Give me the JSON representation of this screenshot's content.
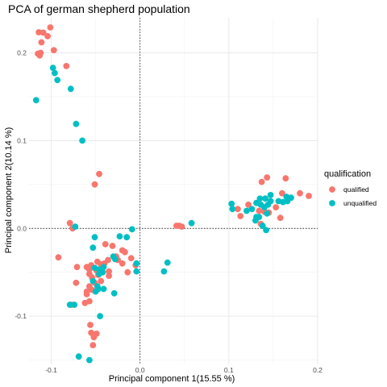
{
  "chart_data": {
    "type": "scatter",
    "title": "PCA of german shepherd population",
    "xlabel": "Principal component 1(15.55 %)",
    "ylabel": "Principal component 2(10.14 %)",
    "xlim": [
      -0.125,
      0.2
    ],
    "ylim": [
      -0.155,
      0.24
    ],
    "x_ticks": [
      -0.1,
      0.0,
      0.1,
      0.2
    ],
    "x_tick_labels": [
      "-0.1",
      "0.0",
      "0.1",
      "0.2"
    ],
    "y_ticks": [
      -0.1,
      0.0,
      0.1,
      0.2
    ],
    "y_tick_labels": [
      "-0.1",
      "0.0",
      "0.1",
      "0.2"
    ],
    "grid": true,
    "reference_lines": {
      "x": 0,
      "y": 0,
      "style": "dotted"
    },
    "legend": {
      "title": "qualification",
      "placement": "right"
    },
    "series": [
      {
        "name": "qualified",
        "color": "#F8766D",
        "points": [
          [
            -0.101,
            0.229
          ],
          [
            -0.114,
            0.2235
          ],
          [
            -0.109,
            0.223
          ],
          [
            -0.104,
            0.219
          ],
          [
            -0.111,
            0.212
          ],
          [
            -0.112,
            0.2
          ],
          [
            -0.115,
            0.199
          ],
          [
            -0.113,
            0.197
          ],
          [
            -0.097,
            0.203
          ],
          [
            -0.083,
            0.185
          ],
          [
            -0.046,
            0.062
          ],
          [
            -0.051,
            0.05
          ],
          [
            -0.079,
            0.006
          ],
          [
            -0.076,
            0.0
          ],
          [
            -0.092,
            -0.033
          ],
          [
            -0.039,
            -0.018
          ],
          [
            -0.031,
            -0.02
          ],
          [
            -0.02,
            -0.025
          ],
          [
            -0.017,
            -0.027
          ],
          [
            -0.027,
            -0.032
          ],
          [
            -0.036,
            -0.036
          ],
          [
            -0.04,
            -0.04
          ],
          [
            -0.048,
            -0.038
          ],
          [
            -0.044,
            -0.041
          ],
          [
            -0.055,
            -0.042
          ],
          [
            -0.06,
            -0.044
          ],
          [
            -0.057,
            -0.047
          ],
          [
            -0.049,
            -0.048
          ],
          [
            -0.047,
            -0.053
          ],
          [
            -0.057,
            -0.052
          ],
          [
            -0.054,
            -0.056
          ],
          [
            -0.035,
            -0.054
          ],
          [
            -0.035,
            -0.049
          ],
          [
            -0.025,
            -0.036
          ],
          [
            -0.02,
            -0.04
          ],
          [
            -0.01,
            -0.034
          ],
          [
            -0.005,
            -0.042
          ],
          [
            -0.014,
            -0.05
          ],
          [
            -0.044,
            -0.06
          ],
          [
            -0.051,
            -0.062
          ],
          [
            -0.057,
            -0.066
          ],
          [
            -0.054,
            -0.07
          ],
          [
            -0.06,
            -0.072
          ],
          [
            -0.06,
            -0.075
          ],
          [
            -0.057,
            -0.083
          ],
          [
            -0.071,
            -0.044
          ],
          [
            -0.072,
            -0.062
          ],
          [
            -0.062,
            -0.085
          ],
          [
            -0.077,
            -0.087
          ],
          [
            -0.056,
            -0.11
          ],
          [
            -0.049,
            -0.12
          ],
          [
            -0.055,
            -0.119
          ],
          [
            -0.052,
            -0.124
          ],
          [
            -0.053,
            -0.133
          ],
          [
            0.041,
            0.003
          ],
          [
            0.044,
            0.003
          ],
          [
            0.047,
            0.002
          ],
          [
            0.137,
            0.053
          ],
          [
            0.143,
            0.058
          ],
          [
            0.164,
            0.057
          ],
          [
            0.18,
            0.04
          ],
          [
            0.19,
            0.037
          ],
          [
            0.16,
            0.04
          ],
          [
            0.153,
            0.024
          ],
          [
            0.158,
            0.012
          ],
          [
            0.122,
            0.027
          ],
          [
            0.134,
            0.02
          ],
          [
            0.14,
            0.019
          ],
          [
            0.145,
            0.018
          ],
          [
            0.136,
            0.005
          ],
          [
            0.11,
            0.022
          ],
          [
            0.113,
            0.014
          ]
        ]
      },
      {
        "name": "unqualified",
        "color": "#00BFC4",
        "points": [
          [
            -0.098,
            0.183
          ],
          [
            -0.096,
            0.177
          ],
          [
            -0.093,
            0.169
          ],
          [
            -0.117,
            0.146
          ],
          [
            -0.078,
            0.159
          ],
          [
            -0.072,
            0.119
          ],
          [
            -0.065,
            0.1
          ],
          [
            -0.073,
            0.002
          ],
          [
            -0.009,
            -0.001
          ],
          [
            -0.023,
            -0.009
          ],
          [
            -0.015,
            -0.01
          ],
          [
            -0.051,
            -0.01
          ],
          [
            -0.053,
            -0.022
          ],
          [
            -0.043,
            -0.049
          ],
          [
            -0.046,
            -0.052
          ],
          [
            -0.046,
            -0.047
          ],
          [
            -0.042,
            -0.05
          ],
          [
            -0.041,
            -0.044
          ],
          [
            -0.051,
            -0.045
          ],
          [
            -0.053,
            -0.06
          ],
          [
            -0.048,
            -0.066
          ],
          [
            -0.047,
            -0.069
          ],
          [
            -0.05,
            -0.072
          ],
          [
            -0.03,
            -0.032
          ],
          [
            -0.028,
            -0.035
          ],
          [
            -0.041,
            -0.069
          ],
          [
            -0.029,
            -0.074
          ],
          [
            -0.004,
            -0.04
          ],
          [
            -0.004,
            -0.049
          ],
          [
            -0.074,
            -0.087
          ],
          [
            -0.079,
            -0.087
          ],
          [
            -0.045,
            -0.1
          ],
          [
            -0.069,
            -0.146
          ],
          [
            -0.057,
            -0.15
          ],
          [
            0.031,
            -0.039
          ],
          [
            0.027,
            -0.049
          ],
          [
            0.058,
            0.006
          ],
          [
            0.103,
            0.028
          ],
          [
            0.104,
            0.022
          ],
          [
            0.12,
            0.02
          ],
          [
            0.126,
            0.022
          ],
          [
            0.131,
            0.029
          ],
          [
            0.136,
            0.027
          ],
          [
            0.135,
            0.034
          ],
          [
            0.141,
            0.034
          ],
          [
            0.147,
            0.031
          ],
          [
            0.147,
            0.038
          ],
          [
            0.156,
            0.031
          ],
          [
            0.161,
            0.03
          ],
          [
            0.165,
            0.036
          ],
          [
            0.17,
            0.035
          ],
          [
            0.166,
            0.031
          ],
          [
            0.144,
            0.027
          ],
          [
            0.14,
            0.024
          ],
          [
            0.143,
            0.017
          ],
          [
            0.131,
            0.013
          ],
          [
            0.134,
            0.013
          ],
          [
            0.138,
            0.003
          ],
          [
            0.142,
            -0.002
          ],
          [
            0.13,
            0.009
          ]
        ]
      }
    ]
  }
}
